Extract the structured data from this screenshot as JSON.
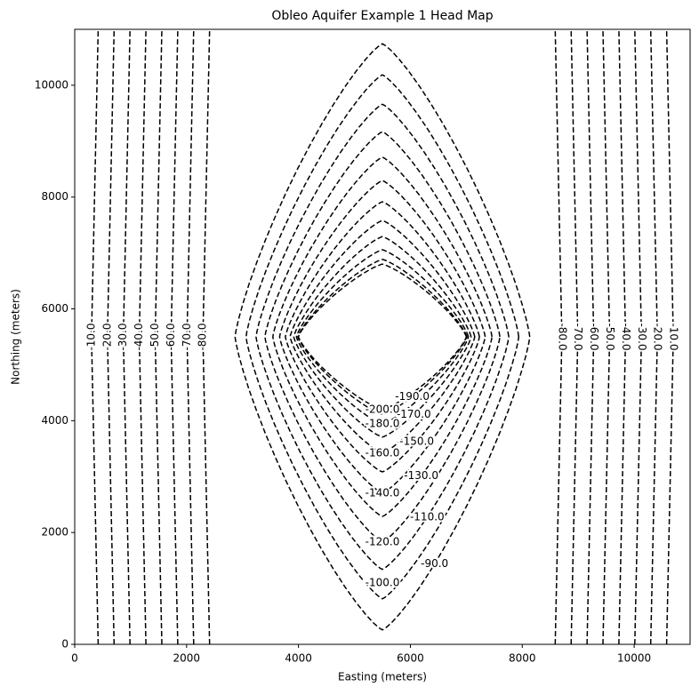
{
  "chart_data": {
    "type": "contour",
    "title": "Obleo Aquifer Example 1 Head Map",
    "x_label": "Easting (meters)",
    "y_label": "Northing (meters)",
    "xlim": [
      0,
      11000
    ],
    "ylim": [
      0,
      11000
    ],
    "xticks": [
      0,
      2000,
      4000,
      6000,
      8000,
      10000
    ],
    "yticks": [
      0,
      2000,
      4000,
      6000,
      8000,
      10000
    ],
    "color": "#000000",
    "levels": [
      {
        "value": -10,
        "label": "-10.0"
      },
      {
        "value": -20,
        "label": "-20.0"
      },
      {
        "value": -30,
        "label": "-30.0"
      },
      {
        "value": -40,
        "label": "-40.0"
      },
      {
        "value": -50,
        "label": "-50.0"
      },
      {
        "value": -60,
        "label": "-60.0"
      },
      {
        "value": -70,
        "label": "-70.0"
      },
      {
        "value": -80,
        "label": "-80.0"
      },
      {
        "value": -90,
        "label": "-90.0"
      },
      {
        "value": -100,
        "label": "-100.0"
      },
      {
        "value": -110,
        "label": "-110.0"
      },
      {
        "value": -120,
        "label": "-120.0"
      },
      {
        "value": -130,
        "label": "-130.0"
      },
      {
        "value": -140,
        "label": "-140.0"
      },
      {
        "value": -150,
        "label": "-150.0"
      },
      {
        "value": -160,
        "label": "-160.0"
      },
      {
        "value": -170,
        "label": "-170.0"
      },
      {
        "value": -180,
        "label": "-180.0"
      },
      {
        "value": -190,
        "label": "-190.0"
      },
      {
        "value": -200,
        "label": "-200.0"
      }
    ]
  }
}
